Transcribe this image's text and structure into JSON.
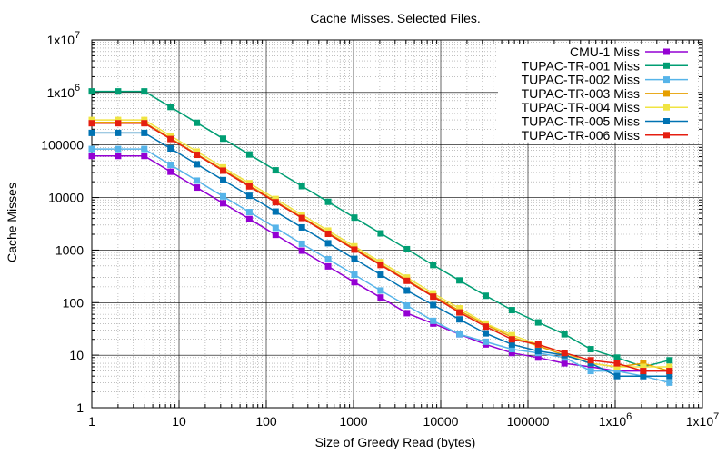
{
  "chart_data": {
    "type": "line",
    "title": "Cache Misses. Selected Files.",
    "xlabel": "Size of Greedy Read (bytes)",
    "ylabel": "Cache Misses",
    "x_scale": "log",
    "y_scale": "log",
    "xlim": [
      1,
      10000000
    ],
    "ylim": [
      1,
      10000000
    ],
    "grid": true,
    "legend_position": "top-right",
    "x_ticks": [
      {
        "value": 1,
        "label": "1"
      },
      {
        "value": 10,
        "label": "10"
      },
      {
        "value": 100,
        "label": "100"
      },
      {
        "value": 1000,
        "label": "1000"
      },
      {
        "value": 10000,
        "label": "10000"
      },
      {
        "value": 100000,
        "label": "100000"
      },
      {
        "value": 1000000,
        "label": "1x10",
        "exp": "6"
      },
      {
        "value": 10000000,
        "label": "1x10",
        "exp": "7"
      }
    ],
    "y_ticks": [
      {
        "value": 1,
        "label": "1"
      },
      {
        "value": 10,
        "label": "10"
      },
      {
        "value": 100,
        "label": "100"
      },
      {
        "value": 1000,
        "label": "1000"
      },
      {
        "value": 10000,
        "label": "10000"
      },
      {
        "value": 100000,
        "label": "100000"
      },
      {
        "value": 1000000,
        "label": "1x10",
        "exp": "6"
      },
      {
        "value": 10000000,
        "label": "1x10",
        "exp": "7"
      }
    ],
    "x": [
      1,
      2,
      4,
      8,
      16,
      32,
      64,
      128,
      256,
      512,
      1024,
      2048,
      4096,
      8192,
      16384,
      32768,
      65536,
      131072,
      262144,
      524288,
      1048576,
      2097152,
      4194304
    ],
    "series": [
      {
        "name": "CMU-1 Miss",
        "color": "#9400d3",
        "values": [
          62000,
          62000,
          62000,
          31000,
          15500,
          7800,
          3900,
          1950,
          975,
          490,
          245,
          125,
          63,
          40,
          25,
          16,
          11,
          9,
          7,
          6,
          5,
          5,
          5
        ]
      },
      {
        "name": "TUPAC-TR-001 Miss",
        "color": "#009e73",
        "values": [
          1050000,
          1050000,
          1050000,
          530000,
          265000,
          132000,
          66000,
          33000,
          16500,
          8300,
          4150,
          2080,
          1040,
          520,
          265,
          135,
          72,
          42,
          25,
          13,
          9,
          6,
          8
        ]
      },
      {
        "name": "TUPAC-TR-002 Miss",
        "color": "#56b4e9",
        "values": [
          84000,
          84000,
          84000,
          42000,
          21000,
          10500,
          5300,
          2650,
          1320,
          670,
          340,
          170,
          88,
          45,
          25,
          18,
          13,
          11,
          9,
          5,
          5,
          4,
          3
        ]
      },
      {
        "name": "TUPAC-TR-003 Miss",
        "color": "#e69f00",
        "values": [
          270000,
          270000,
          270000,
          135000,
          67000,
          34000,
          17000,
          8500,
          4250,
          2130,
          1070,
          540,
          270,
          135,
          70,
          38,
          22,
          15,
          10,
          7,
          6,
          7,
          5
        ]
      },
      {
        "name": "TUPAC-TR-004 Miss",
        "color": "#f0e442",
        "values": [
          300000,
          300000,
          300000,
          150000,
          75000,
          37500,
          18800,
          9400,
          4700,
          2350,
          1180,
          590,
          300,
          150,
          78,
          40,
          24,
          16,
          11,
          7,
          6,
          6,
          6
        ]
      },
      {
        "name": "TUPAC-TR-005 Miss",
        "color": "#0072b2",
        "values": [
          170000,
          170000,
          170000,
          86000,
          43000,
          21500,
          10800,
          5400,
          2700,
          1350,
          680,
          340,
          170,
          90,
          48,
          26,
          16,
          12,
          10,
          7,
          4,
          4,
          4
        ]
      },
      {
        "name": "TUPAC-TR-006 Miss",
        "color": "#e51e10",
        "values": [
          260000,
          260000,
          260000,
          130000,
          65000,
          32500,
          16300,
          8150,
          4080,
          2040,
          1020,
          520,
          260,
          130,
          65,
          35,
          20,
          16,
          11,
          8,
          7,
          5,
          5
        ]
      }
    ]
  }
}
